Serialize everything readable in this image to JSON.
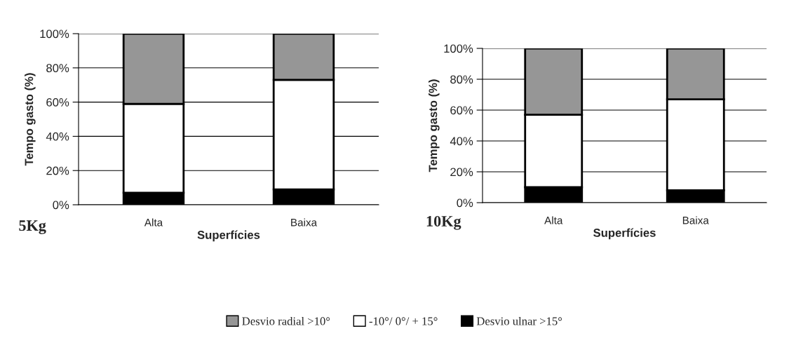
{
  "chart_data": [
    {
      "type": "bar",
      "title": "5Kg",
      "xlabel": "Superfícies",
      "ylabel": "Tempo gasto (%)",
      "categories": [
        "Alta",
        "Baixa"
      ],
      "stacked": true,
      "series": [
        {
          "name": "Desvio ulnar >15°",
          "color": "#000000",
          "values": [
            7,
            9
          ]
        },
        {
          "name": "-10°/ 0°/ + 15°",
          "color": "#ffffff",
          "values": [
            52,
            64
          ]
        },
        {
          "name": "Desvio radial >10°",
          "color": "#969696",
          "values": [
            41,
            27
          ]
        }
      ],
      "ylim": [
        0,
        100
      ],
      "yticks": [
        {
          "value": 0,
          "label": "0%"
        },
        {
          "value": 20,
          "label": "20%"
        },
        {
          "value": 40,
          "label": "40%"
        },
        {
          "value": 60,
          "label": "60%"
        },
        {
          "value": 80,
          "label": "80%"
        },
        {
          "value": 100,
          "label": "100%"
        }
      ],
      "grid": "y",
      "legend": "bottom"
    },
    {
      "type": "bar",
      "title": "10Kg",
      "xlabel": "Superfícies",
      "ylabel": "Tempo gasto (%)",
      "categories": [
        "Alta",
        "Baixa"
      ],
      "stacked": true,
      "series": [
        {
          "color": "#000000",
          "values": [
            10,
            8
          ]
        },
        {
          "color": "#ffffff",
          "values": [
            47,
            59
          ]
        },
        {
          "color": "#969696",
          "values": [
            43,
            33
          ]
        }
      ],
      "ylim": [
        0,
        100
      ],
      "yticks": [
        {
          "value": 0,
          "label": "0%"
        },
        {
          "value": 20,
          "label": "20%"
        },
        {
          "value": 40,
          "label": "40%"
        },
        {
          "value": 60,
          "label": "60%"
        },
        {
          "value": 80,
          "label": "80%"
        },
        {
          "value": 100,
          "label": "100%"
        }
      ],
      "grid": "y"
    }
  ]
}
